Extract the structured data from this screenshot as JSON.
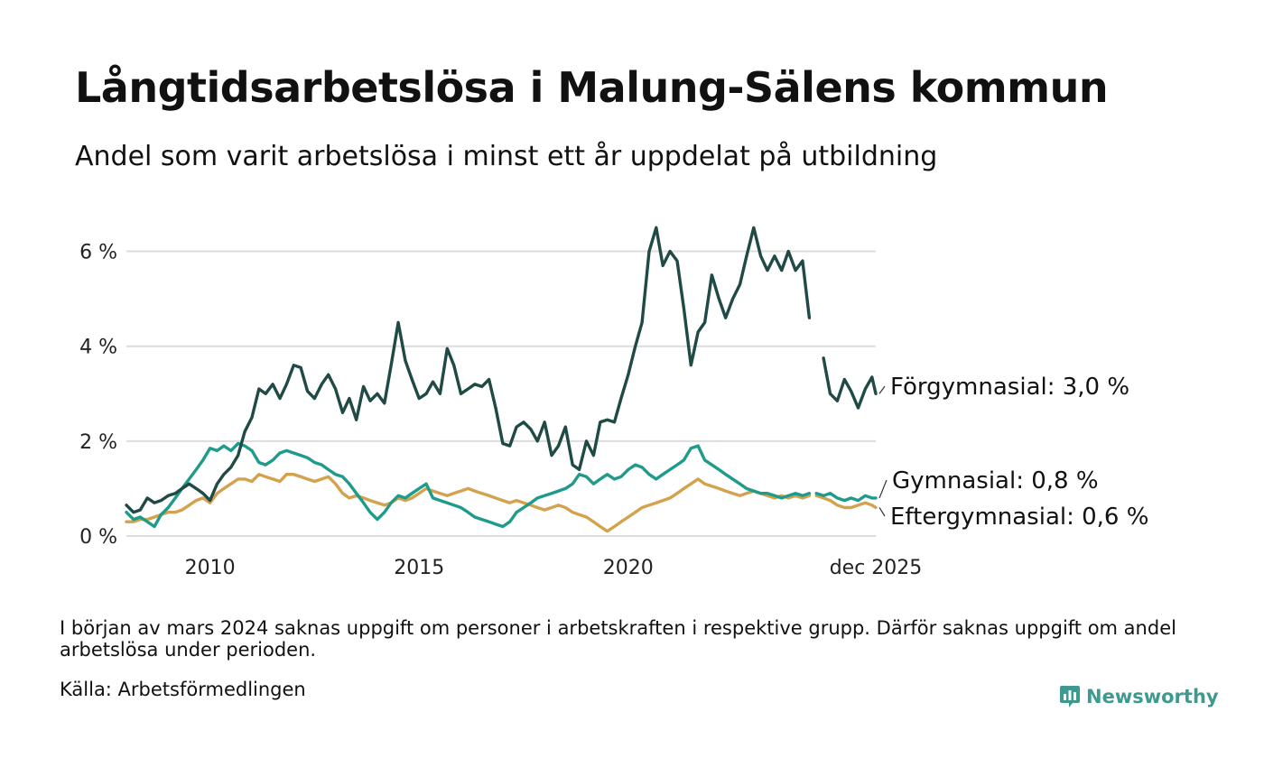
{
  "title": "Långtidsarbetslösa i Malung-Sälens kommun",
  "subtitle": "Andel som varit arbetslösa i minst ett år uppdelat på utbildning",
  "note": "I början av mars 2024 saknas uppgift om personer i arbetskraften i respektive grupp. Därför saknas uppgift om andel arbetslösa under perioden.",
  "source": "Källa: Arbetsförmedlingen",
  "logo": {
    "text": "Newsworthy",
    "color": "#3e9a90"
  },
  "chart_data": {
    "type": "line",
    "title": "Långtidsarbetslösa i Malung-Sälens kommun",
    "xlabel": "",
    "ylabel": "",
    "ylim": [
      0,
      6.6
    ],
    "xlim": [
      2008.0,
      2025.92
    ],
    "yticks": [
      0,
      2,
      4,
      6
    ],
    "ytick_labels": [
      "0 %",
      "2 %",
      "4 %",
      "6 %"
    ],
    "xticks": [
      2010,
      2015,
      2020,
      2025.92
    ],
    "xtick_labels": [
      "2010",
      "2015",
      "2020",
      "dec 2025"
    ],
    "gap_note": "Data saknas mars 2024",
    "series": [
      {
        "name": "Förgymnasial",
        "label": "Förgymnasial: 3,0 %",
        "color": "#1f4a45",
        "points": [
          [
            2008.0,
            0.65
          ],
          [
            2008.17,
            0.5
          ],
          [
            2008.33,
            0.55
          ],
          [
            2008.5,
            0.8
          ],
          [
            2008.67,
            0.7
          ],
          [
            2008.83,
            0.75
          ],
          [
            2009.0,
            0.85
          ],
          [
            2009.17,
            0.9
          ],
          [
            2009.33,
            1.0
          ],
          [
            2009.5,
            1.1
          ],
          [
            2009.67,
            1.0
          ],
          [
            2009.83,
            0.9
          ],
          [
            2010.0,
            0.75
          ],
          [
            2010.17,
            1.1
          ],
          [
            2010.33,
            1.3
          ],
          [
            2010.5,
            1.45
          ],
          [
            2010.67,
            1.7
          ],
          [
            2010.83,
            2.2
          ],
          [
            2011.0,
            2.5
          ],
          [
            2011.17,
            3.1
          ],
          [
            2011.33,
            3.0
          ],
          [
            2011.5,
            3.2
          ],
          [
            2011.67,
            2.9
          ],
          [
            2011.83,
            3.2
          ],
          [
            2012.0,
            3.6
          ],
          [
            2012.17,
            3.55
          ],
          [
            2012.33,
            3.05
          ],
          [
            2012.5,
            2.9
          ],
          [
            2012.67,
            3.2
          ],
          [
            2012.83,
            3.4
          ],
          [
            2013.0,
            3.1
          ],
          [
            2013.17,
            2.6
          ],
          [
            2013.33,
            2.9
          ],
          [
            2013.5,
            2.45
          ],
          [
            2013.67,
            3.15
          ],
          [
            2013.83,
            2.85
          ],
          [
            2014.0,
            3.0
          ],
          [
            2014.17,
            2.8
          ],
          [
            2014.33,
            3.6
          ],
          [
            2014.5,
            4.5
          ],
          [
            2014.67,
            3.7
          ],
          [
            2014.83,
            3.3
          ],
          [
            2015.0,
            2.9
          ],
          [
            2015.17,
            3.0
          ],
          [
            2015.33,
            3.25
          ],
          [
            2015.5,
            3.0
          ],
          [
            2015.67,
            3.95
          ],
          [
            2015.83,
            3.6
          ],
          [
            2016.0,
            3.0
          ],
          [
            2016.17,
            3.1
          ],
          [
            2016.33,
            3.2
          ],
          [
            2016.5,
            3.15
          ],
          [
            2016.67,
            3.3
          ],
          [
            2016.83,
            2.7
          ],
          [
            2017.0,
            1.95
          ],
          [
            2017.17,
            1.9
          ],
          [
            2017.33,
            2.3
          ],
          [
            2017.5,
            2.4
          ],
          [
            2017.67,
            2.25
          ],
          [
            2017.83,
            2.0
          ],
          [
            2018.0,
            2.4
          ],
          [
            2018.17,
            1.7
          ],
          [
            2018.33,
            1.9
          ],
          [
            2018.5,
            2.3
          ],
          [
            2018.67,
            1.5
          ],
          [
            2018.83,
            1.4
          ],
          [
            2019.0,
            2.0
          ],
          [
            2019.17,
            1.7
          ],
          [
            2019.33,
            2.4
          ],
          [
            2019.5,
            2.45
          ],
          [
            2019.67,
            2.4
          ],
          [
            2019.83,
            2.9
          ],
          [
            2020.0,
            3.4
          ],
          [
            2020.17,
            4.0
          ],
          [
            2020.33,
            4.5
          ],
          [
            2020.5,
            6.0
          ],
          [
            2020.67,
            6.5
          ],
          [
            2020.83,
            5.7
          ],
          [
            2021.0,
            6.0
          ],
          [
            2021.17,
            5.8
          ],
          [
            2021.33,
            4.8
          ],
          [
            2021.5,
            3.6
          ],
          [
            2021.67,
            4.3
          ],
          [
            2021.83,
            4.5
          ],
          [
            2022.0,
            5.5
          ],
          [
            2022.17,
            5.0
          ],
          [
            2022.33,
            4.6
          ],
          [
            2022.5,
            5.0
          ],
          [
            2022.67,
            5.3
          ],
          [
            2022.83,
            5.9
          ],
          [
            2023.0,
            6.5
          ],
          [
            2023.17,
            5.9
          ],
          [
            2023.33,
            5.6
          ],
          [
            2023.5,
            5.9
          ],
          [
            2023.67,
            5.6
          ],
          [
            2023.83,
            6.0
          ],
          [
            2024.0,
            5.6
          ],
          [
            2024.17,
            5.8
          ],
          [
            2024.33,
            4.6
          ]
        ],
        "label_value": 3.0
      },
      {
        "name": "Gymnasial",
        "label": "Gymnasial: 0,8 %",
        "color": "#1e9b8a",
        "points": [
          [
            2008.0,
            0.5
          ],
          [
            2008.17,
            0.35
          ],
          [
            2008.33,
            0.4
          ],
          [
            2008.5,
            0.3
          ],
          [
            2008.67,
            0.2
          ],
          [
            2008.83,
            0.45
          ],
          [
            2009.0,
            0.6
          ],
          [
            2009.17,
            0.8
          ],
          [
            2009.33,
            1.0
          ],
          [
            2009.5,
            1.2
          ],
          [
            2009.67,
            1.4
          ],
          [
            2009.83,
            1.6
          ],
          [
            2010.0,
            1.85
          ],
          [
            2010.17,
            1.8
          ],
          [
            2010.33,
            1.9
          ],
          [
            2010.5,
            1.8
          ],
          [
            2010.67,
            1.95
          ],
          [
            2010.83,
            1.9
          ],
          [
            2011.0,
            1.8
          ],
          [
            2011.17,
            1.55
          ],
          [
            2011.33,
            1.5
          ],
          [
            2011.5,
            1.6
          ],
          [
            2011.67,
            1.75
          ],
          [
            2011.83,
            1.8
          ],
          [
            2012.0,
            1.75
          ],
          [
            2012.17,
            1.7
          ],
          [
            2012.33,
            1.65
          ],
          [
            2012.5,
            1.55
          ],
          [
            2012.67,
            1.5
          ],
          [
            2012.83,
            1.4
          ],
          [
            2013.0,
            1.3
          ],
          [
            2013.17,
            1.25
          ],
          [
            2013.33,
            1.1
          ],
          [
            2013.5,
            0.9
          ],
          [
            2013.67,
            0.7
          ],
          [
            2013.83,
            0.5
          ],
          [
            2014.0,
            0.35
          ],
          [
            2014.17,
            0.5
          ],
          [
            2014.33,
            0.7
          ],
          [
            2014.5,
            0.85
          ],
          [
            2014.67,
            0.8
          ],
          [
            2014.83,
            0.9
          ],
          [
            2015.0,
            1.0
          ],
          [
            2015.17,
            1.1
          ],
          [
            2015.33,
            0.8
          ],
          [
            2015.5,
            0.75
          ],
          [
            2015.67,
            0.7
          ],
          [
            2015.83,
            0.65
          ],
          [
            2016.0,
            0.6
          ],
          [
            2016.17,
            0.5
          ],
          [
            2016.33,
            0.4
          ],
          [
            2016.5,
            0.35
          ],
          [
            2016.67,
            0.3
          ],
          [
            2016.83,
            0.25
          ],
          [
            2017.0,
            0.2
          ],
          [
            2017.17,
            0.3
          ],
          [
            2017.33,
            0.5
          ],
          [
            2017.5,
            0.6
          ],
          [
            2017.67,
            0.7
          ],
          [
            2017.83,
            0.8
          ],
          [
            2018.0,
            0.85
          ],
          [
            2018.17,
            0.9
          ],
          [
            2018.33,
            0.95
          ],
          [
            2018.5,
            1.0
          ],
          [
            2018.67,
            1.1
          ],
          [
            2018.83,
            1.3
          ],
          [
            2019.0,
            1.25
          ],
          [
            2019.17,
            1.1
          ],
          [
            2019.33,
            1.2
          ],
          [
            2019.5,
            1.3
          ],
          [
            2019.67,
            1.2
          ],
          [
            2019.83,
            1.25
          ],
          [
            2020.0,
            1.4
          ],
          [
            2020.17,
            1.5
          ],
          [
            2020.33,
            1.45
          ],
          [
            2020.5,
            1.3
          ],
          [
            2020.67,
            1.2
          ],
          [
            2020.83,
            1.3
          ],
          [
            2021.0,
            1.4
          ],
          [
            2021.17,
            1.5
          ],
          [
            2021.33,
            1.6
          ],
          [
            2021.5,
            1.85
          ],
          [
            2021.67,
            1.9
          ],
          [
            2021.83,
            1.6
          ],
          [
            2022.0,
            1.5
          ],
          [
            2022.17,
            1.4
          ],
          [
            2022.33,
            1.3
          ],
          [
            2022.5,
            1.2
          ],
          [
            2022.67,
            1.1
          ],
          [
            2022.83,
            1.0
          ],
          [
            2023.0,
            0.95
          ],
          [
            2023.17,
            0.9
          ],
          [
            2023.33,
            0.9
          ],
          [
            2023.5,
            0.85
          ],
          [
            2023.67,
            0.8
          ],
          [
            2023.83,
            0.85
          ],
          [
            2024.0,
            0.9
          ],
          [
            2024.17,
            0.85
          ],
          [
            2024.33,
            0.9
          ]
        ],
        "label_value": 0.8
      },
      {
        "name": "Eftergymnasial",
        "label": "Eftergymnasial: 0,6 %",
        "color": "#d4a24c",
        "points": [
          [
            2008.0,
            0.3
          ],
          [
            2008.17,
            0.3
          ],
          [
            2008.33,
            0.35
          ],
          [
            2008.5,
            0.35
          ],
          [
            2008.67,
            0.4
          ],
          [
            2008.83,
            0.45
          ],
          [
            2009.0,
            0.5
          ],
          [
            2009.17,
            0.5
          ],
          [
            2009.33,
            0.55
          ],
          [
            2009.5,
            0.65
          ],
          [
            2009.67,
            0.75
          ],
          [
            2009.83,
            0.8
          ],
          [
            2010.0,
            0.7
          ],
          [
            2010.17,
            0.9
          ],
          [
            2010.33,
            1.0
          ],
          [
            2010.5,
            1.1
          ],
          [
            2010.67,
            1.2
          ],
          [
            2010.83,
            1.2
          ],
          [
            2011.0,
            1.15
          ],
          [
            2011.17,
            1.3
          ],
          [
            2011.33,
            1.25
          ],
          [
            2011.5,
            1.2
          ],
          [
            2011.67,
            1.15
          ],
          [
            2011.83,
            1.3
          ],
          [
            2012.0,
            1.3
          ],
          [
            2012.17,
            1.25
          ],
          [
            2012.33,
            1.2
          ],
          [
            2012.5,
            1.15
          ],
          [
            2012.67,
            1.2
          ],
          [
            2012.83,
            1.25
          ],
          [
            2013.0,
            1.1
          ],
          [
            2013.17,
            0.9
          ],
          [
            2013.33,
            0.8
          ],
          [
            2013.5,
            0.85
          ],
          [
            2013.67,
            0.8
          ],
          [
            2013.83,
            0.75
          ],
          [
            2014.0,
            0.7
          ],
          [
            2014.17,
            0.65
          ],
          [
            2014.33,
            0.7
          ],
          [
            2014.5,
            0.8
          ],
          [
            2014.67,
            0.75
          ],
          [
            2014.83,
            0.8
          ],
          [
            2015.0,
            0.9
          ],
          [
            2015.17,
            1.0
          ],
          [
            2015.33,
            0.95
          ],
          [
            2015.5,
            0.9
          ],
          [
            2015.67,
            0.85
          ],
          [
            2015.83,
            0.9
          ],
          [
            2016.0,
            0.95
          ],
          [
            2016.17,
            1.0
          ],
          [
            2016.33,
            0.95
          ],
          [
            2016.5,
            0.9
          ],
          [
            2016.67,
            0.85
          ],
          [
            2016.83,
            0.8
          ],
          [
            2017.0,
            0.75
          ],
          [
            2017.17,
            0.7
          ],
          [
            2017.33,
            0.75
          ],
          [
            2017.5,
            0.7
          ],
          [
            2017.67,
            0.65
          ],
          [
            2017.83,
            0.6
          ],
          [
            2018.0,
            0.55
          ],
          [
            2018.17,
            0.6
          ],
          [
            2018.33,
            0.65
          ],
          [
            2018.5,
            0.6
          ],
          [
            2018.67,
            0.5
          ],
          [
            2018.83,
            0.45
          ],
          [
            2019.0,
            0.4
          ],
          [
            2019.17,
            0.3
          ],
          [
            2019.33,
            0.2
          ],
          [
            2019.5,
            0.1
          ],
          [
            2019.67,
            0.2
          ],
          [
            2019.83,
            0.3
          ],
          [
            2020.0,
            0.4
          ],
          [
            2020.17,
            0.5
          ],
          [
            2020.33,
            0.6
          ],
          [
            2020.5,
            0.65
          ],
          [
            2020.67,
            0.7
          ],
          [
            2020.83,
            0.75
          ],
          [
            2021.0,
            0.8
          ],
          [
            2021.17,
            0.9
          ],
          [
            2021.33,
            1.0
          ],
          [
            2021.5,
            1.1
          ],
          [
            2021.67,
            1.2
          ],
          [
            2021.83,
            1.1
          ],
          [
            2022.0,
            1.05
          ],
          [
            2022.17,
            1.0
          ],
          [
            2022.33,
            0.95
          ],
          [
            2022.5,
            0.9
          ],
          [
            2022.67,
            0.85
          ],
          [
            2022.83,
            0.9
          ],
          [
            2023.0,
            0.95
          ],
          [
            2023.17,
            0.9
          ],
          [
            2023.33,
            0.85
          ],
          [
            2023.5,
            0.8
          ],
          [
            2023.67,
            0.85
          ],
          [
            2023.83,
            0.8
          ],
          [
            2024.0,
            0.85
          ],
          [
            2024.17,
            0.8
          ],
          [
            2024.33,
            0.85
          ]
        ],
        "label_value": 0.6
      }
    ]
  }
}
